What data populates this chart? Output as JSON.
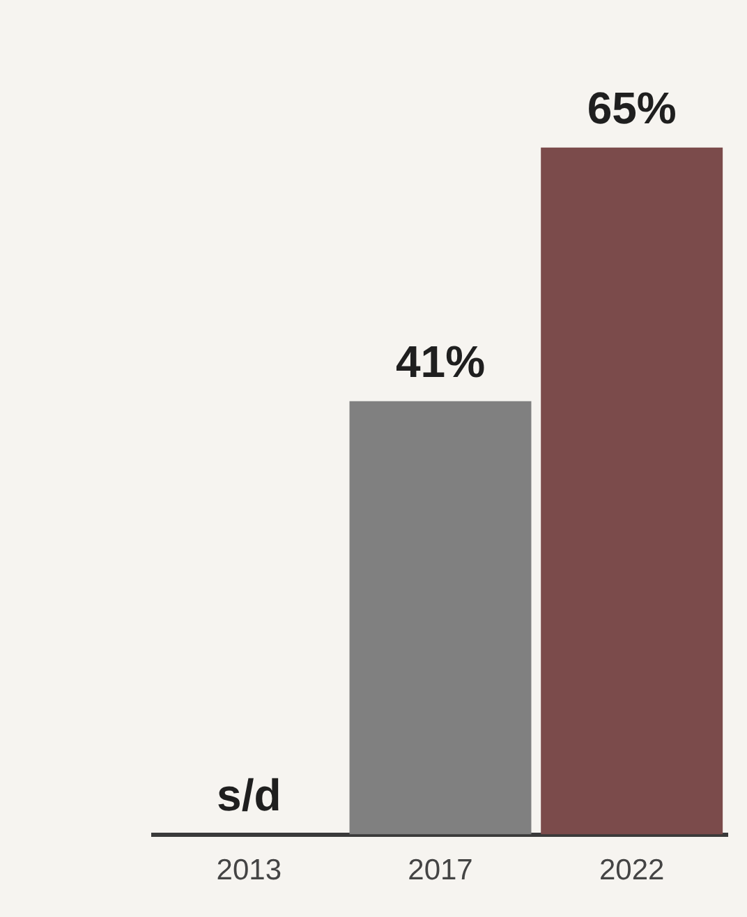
{
  "chart_data": {
    "type": "bar",
    "categories": [
      "2013",
      "2017",
      "2022"
    ],
    "values": [
      null,
      41,
      65
    ],
    "colors": [
      "#808080",
      "#808080",
      "#7b4b4b"
    ],
    "value_labels": [
      "s/d",
      "41%",
      "65%"
    ],
    "grid": false,
    "legend": false,
    "tick_labels": "x"
  }
}
